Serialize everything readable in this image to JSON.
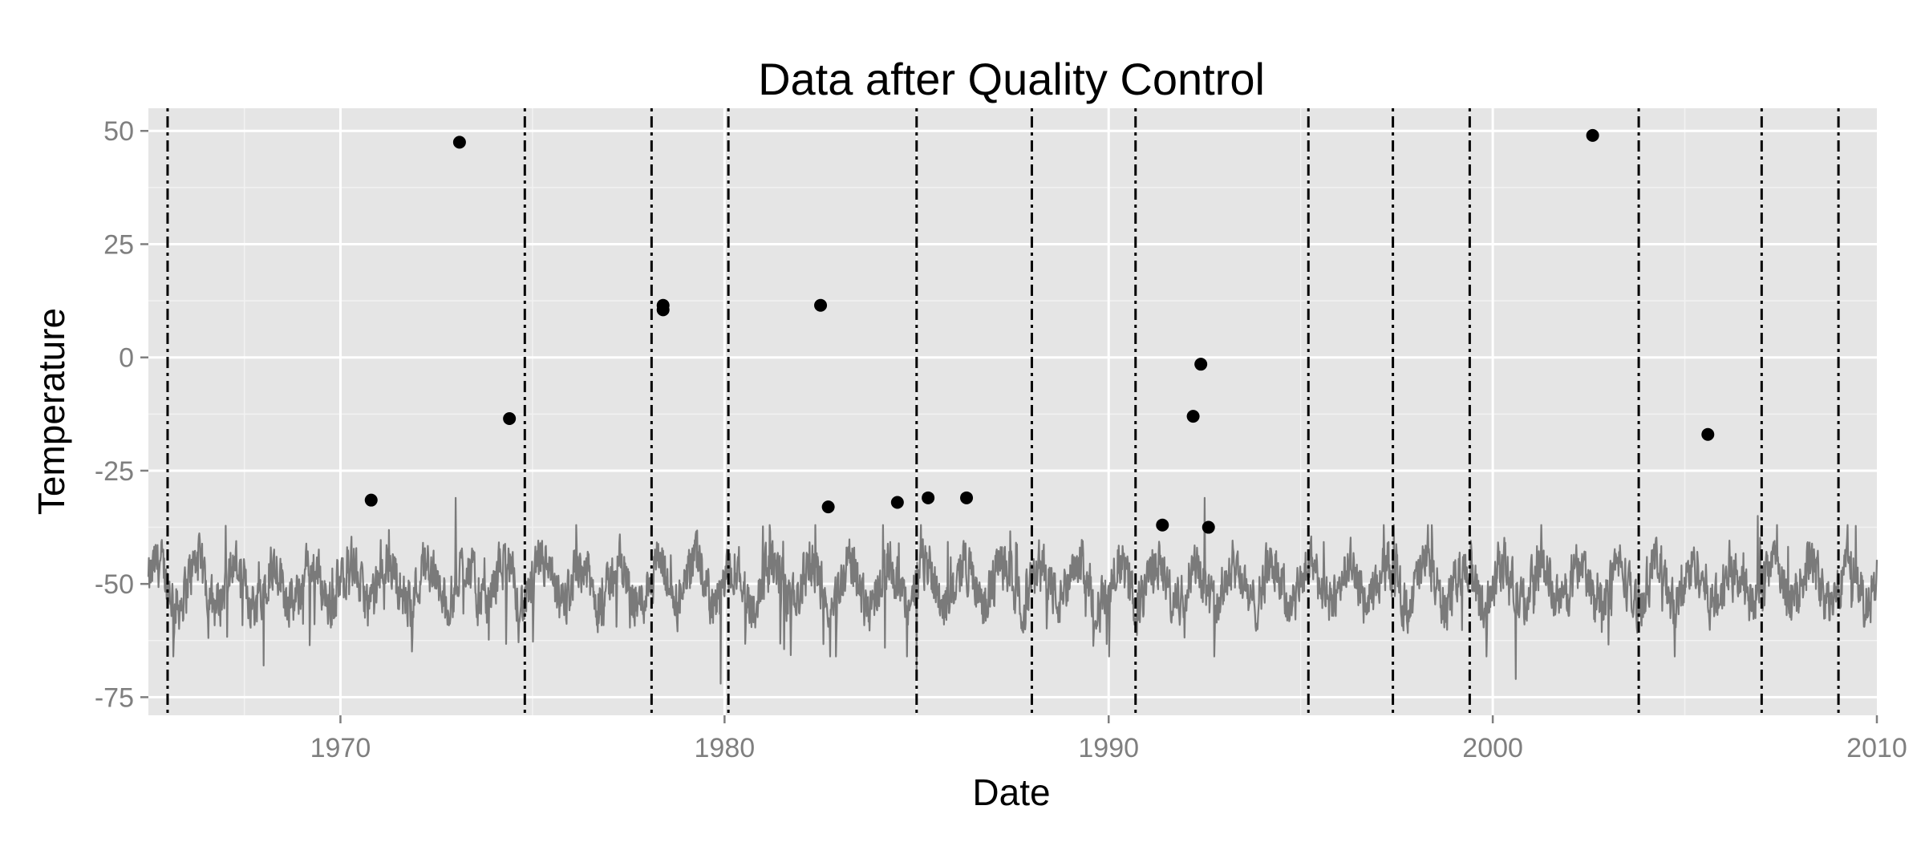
{
  "chart_data": {
    "type": "line",
    "title": "Data after Quality Control",
    "xlabel": "Date",
    "ylabel": "Temperature",
    "xlim": [
      1965,
      2010
    ],
    "ylim": [
      -79,
      55
    ],
    "x_ticks": [
      1970,
      1980,
      1990,
      2000,
      2010
    ],
    "x_tick_labels": [
      "1970",
      "1980",
      "1990",
      "2000",
      "2010"
    ],
    "y_ticks": [
      50,
      25,
      0,
      -25,
      -50,
      -75
    ],
    "y_tick_labels": [
      "50",
      "25",
      "0",
      "-25",
      "-50",
      "-75"
    ],
    "grid": true,
    "background": "#e5e5e5",
    "series": [
      {
        "kind": "line",
        "color": "#7a7a7a",
        "baseline": -50,
        "x_range": [
          1965,
          2010
        ],
        "notable_values": [
          {
            "x": 1968.0,
            "y": -68
          },
          {
            "x": 1973.0,
            "y": -31
          },
          {
            "x": 1979.9,
            "y": -72
          },
          {
            "x": 1985.0,
            "y": -70
          },
          {
            "x": 1992.5,
            "y": -31
          },
          {
            "x": 2000.6,
            "y": -71
          },
          {
            "x": 2006.9,
            "y": -35
          }
        ]
      },
      {
        "kind": "points",
        "color": "#000000",
        "points": [
          {
            "x": 1970.8,
            "y": -31.5
          },
          {
            "x": 1973.1,
            "y": 47.5
          },
          {
            "x": 1974.4,
            "y": -13.5
          },
          {
            "x": 1978.4,
            "y": 11.5
          },
          {
            "x": 1978.4,
            "y": 10.5
          },
          {
            "x": 1982.5,
            "y": 11.5
          },
          {
            "x": 1982.7,
            "y": -33
          },
          {
            "x": 1984.5,
            "y": -32
          },
          {
            "x": 1985.3,
            "y": -31
          },
          {
            "x": 1986.3,
            "y": -31
          },
          {
            "x": 1991.4,
            "y": -37
          },
          {
            "x": 1992.2,
            "y": -13
          },
          {
            "x": 1992.4,
            "y": -1.5
          },
          {
            "x": 1992.6,
            "y": -37.5
          },
          {
            "x": 2002.6,
            "y": 49
          },
          {
            "x": 2005.6,
            "y": -17
          }
        ]
      }
    ],
    "vlines": {
      "style": "dotdash",
      "color": "#000000",
      "x": [
        1965.5,
        1974.8,
        1978.1,
        1980.1,
        1985.0,
        1988.0,
        1990.7,
        1995.2,
        1997.4,
        1999.4,
        2003.8,
        2007.0,
        2009.0
      ]
    }
  }
}
